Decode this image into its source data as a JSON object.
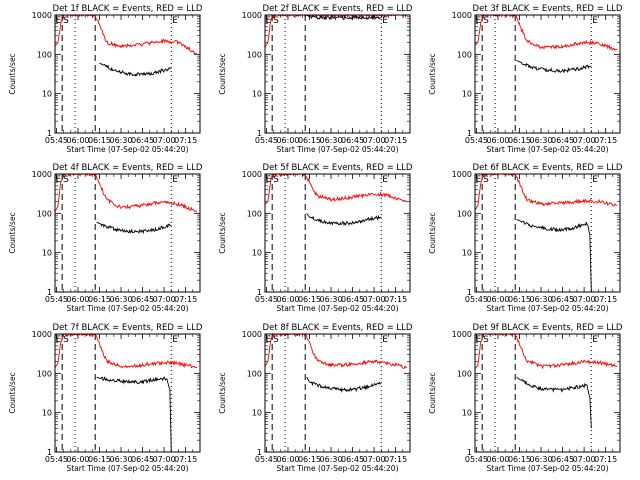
{
  "colors": {
    "events": "#000000",
    "lld": "#ff0000",
    "axes": "#000000",
    "background": "#ffffff"
  },
  "shared": {
    "title_suffix": "BLACK = Events, RED = LLD",
    "xlabel": "Start Time (07-Sep-02 05:44:20)",
    "ylabel": "Counts/sec",
    "x_ticks": [
      "05:45",
      "06:00",
      "06:15",
      "06:30",
      "06:45",
      "07:00",
      "07:15"
    ],
    "y_ticks": [
      "1",
      "10",
      "100",
      "1000"
    ],
    "markers": {
      "S": "S",
      "E": "E"
    }
  },
  "chart_data": [
    {
      "type": "line",
      "title": "Det 1f BLACK = Events, RED = LLD",
      "xlabel": "Start Time (07-Sep-02 05:44:20)",
      "ylabel": "Counts/sec",
      "yscale": "log",
      "ylim": [
        1,
        1000
      ],
      "xlim": [
        "05:44",
        "07:25"
      ],
      "grid": false,
      "markers": {
        "S": "05:49",
        "E": "07:05"
      },
      "dashed_lines": [
        "05:49",
        "06:12"
      ],
      "dotted_lines": [
        "05:58",
        "07:05"
      ],
      "series": [
        {
          "color": "#ff0000",
          "x": [
            "05:44",
            "05:46",
            "05:48",
            "05:50",
            "06:12",
            "06:20",
            "06:30",
            "06:45",
            "07:00",
            "07:10",
            "07:15",
            "07:23"
          ],
          "y": [
            160,
            200,
            600,
            1000,
            1000,
            200,
            160,
            180,
            220,
            200,
            160,
            100
          ]
        },
        {
          "color": "#000000",
          "x": [
            "06:15",
            "06:17",
            "06:25",
            "06:35",
            "06:45",
            "06:55",
            "07:05"
          ],
          "y": [
            60,
            55,
            40,
            32,
            30,
            35,
            45
          ]
        }
      ]
    },
    {
      "type": "line",
      "title": "Det 2f BLACK = Events, RED = LLD",
      "xlabel": "Start Time (07-Sep-02 05:44:20)",
      "ylabel": "Counts/sec",
      "yscale": "log",
      "ylim": [
        1,
        1000
      ],
      "xlim": [
        "05:44",
        "07:25"
      ],
      "grid": false,
      "markers": {
        "S": "05:49",
        "E": "07:05"
      },
      "dashed_lines": [
        "05:49",
        "06:12"
      ],
      "dotted_lines": [
        "05:58",
        "07:05"
      ],
      "series": [
        {
          "color": "#ff0000",
          "x": [
            "05:44",
            "05:46",
            "05:48",
            "05:50",
            "06:12",
            "06:20",
            "06:45",
            "07:00",
            "07:25"
          ],
          "y": [
            150,
            200,
            700,
            1000,
            1000,
            1000,
            1000,
            1000,
            1000
          ]
        },
        {
          "color": "#000000",
          "x": [
            "06:13",
            "06:15",
            "06:30",
            "06:45",
            "07:00",
            "07:05"
          ],
          "y": [
            1000,
            900,
            850,
            850,
            850,
            850
          ]
        }
      ]
    },
    {
      "type": "line",
      "title": "Det 3f BLACK = Events, RED = LLD",
      "xlabel": "Start Time (07-Sep-02 05:44:20)",
      "ylabel": "Counts/sec",
      "yscale": "log",
      "ylim": [
        1,
        1000
      ],
      "xlim": [
        "05:44",
        "07:25"
      ],
      "grid": false,
      "markers": {
        "S": "05:49",
        "E": "07:05"
      },
      "dashed_lines": [
        "05:49",
        "06:12"
      ],
      "dotted_lines": [
        "05:58",
        "07:05"
      ],
      "series": [
        {
          "color": "#ff0000",
          "x": [
            "05:44",
            "05:46",
            "05:48",
            "05:50",
            "06:12",
            "06:20",
            "06:30",
            "06:45",
            "07:00",
            "07:10",
            "07:23"
          ],
          "y": [
            170,
            200,
            600,
            1000,
            1000,
            220,
            150,
            160,
            200,
            190,
            130
          ]
        },
        {
          "color": "#000000",
          "x": [
            "06:13",
            "06:15",
            "06:25",
            "06:35",
            "06:45",
            "06:55",
            "07:05"
          ],
          "y": [
            70,
            65,
            45,
            40,
            38,
            42,
            50
          ]
        }
      ]
    },
    {
      "type": "line",
      "title": "Det 4f BLACK = Events, RED = LLD",
      "xlabel": "Start Time (07-Sep-02 05:44:20)",
      "ylabel": "Counts/sec",
      "yscale": "log",
      "ylim": [
        1,
        1000
      ],
      "xlim": [
        "05:44",
        "07:25"
      ],
      "grid": false,
      "markers": {
        "S": "05:49",
        "E": "07:05"
      },
      "dashed_lines": [
        "05:49",
        "06:12"
      ],
      "dotted_lines": [
        "05:58",
        "07:05"
      ],
      "series": [
        {
          "color": "#ff0000",
          "x": [
            "05:44",
            "05:46",
            "05:48",
            "05:50",
            "06:12",
            "06:20",
            "06:30",
            "06:45",
            "07:00",
            "07:10",
            "07:23"
          ],
          "y": [
            110,
            150,
            600,
            1000,
            1000,
            220,
            140,
            160,
            200,
            170,
            110
          ]
        },
        {
          "color": "#000000",
          "x": [
            "06:13",
            "06:15",
            "06:25",
            "06:35",
            "06:45",
            "06:55",
            "07:05"
          ],
          "y": [
            60,
            55,
            40,
            35,
            35,
            40,
            50
          ]
        }
      ]
    },
    {
      "type": "line",
      "title": "Det 5f BLACK = Events, RED = LLD",
      "xlabel": "Start Time (07-Sep-02 05:44:20)",
      "ylabel": "Counts/sec",
      "yscale": "log",
      "ylim": [
        1,
        1000
      ],
      "xlim": [
        "05:44",
        "07:25"
      ],
      "grid": false,
      "markers": {
        "S": "05:49",
        "E": "07:05"
      },
      "dashed_lines": [
        "05:49",
        "06:12"
      ],
      "dotted_lines": [
        "05:58",
        "07:05"
      ],
      "series": [
        {
          "color": "#ff0000",
          "x": [
            "05:44",
            "05:46",
            "05:48",
            "05:50",
            "06:12",
            "06:20",
            "06:30",
            "06:45",
            "07:00",
            "07:10",
            "07:23"
          ],
          "y": [
            170,
            200,
            700,
            1000,
            1000,
            280,
            220,
            260,
            320,
            280,
            200
          ]
        },
        {
          "color": "#000000",
          "x": [
            "06:13",
            "06:15",
            "06:25",
            "06:35",
            "06:45",
            "06:55",
            "07:05"
          ],
          "y": [
            100,
            80,
            60,
            55,
            58,
            70,
            80
          ]
        }
      ]
    },
    {
      "type": "line",
      "title": "Det 6f BLACK = Events, RED = LLD",
      "xlabel": "Start Time (07-Sep-02 05:44:20)",
      "ylabel": "Counts/sec",
      "yscale": "log",
      "ylim": [
        1,
        1000
      ],
      "xlim": [
        "05:44",
        "07:25"
      ],
      "grid": false,
      "markers": {
        "S": "05:49",
        "E": "07:05"
      },
      "dashed_lines": [
        "05:49",
        "06:12"
      ],
      "dotted_lines": [
        "05:58",
        "07:05"
      ],
      "series": [
        {
          "color": "#ff0000",
          "x": [
            "05:44",
            "05:46",
            "05:48",
            "05:50",
            "06:12",
            "06:20",
            "06:30",
            "06:45",
            "07:00",
            "07:10",
            "07:23"
          ],
          "y": [
            120,
            160,
            600,
            1000,
            1000,
            220,
            170,
            180,
            210,
            200,
            160
          ]
        },
        {
          "color": "#000000",
          "x": [
            "06:13",
            "06:15",
            "06:25",
            "06:35",
            "06:45",
            "06:55",
            "07:02",
            "07:04",
            "07:05"
          ],
          "y": [
            70,
            65,
            45,
            40,
            38,
            45,
            55,
            30,
            1
          ]
        }
      ]
    },
    {
      "type": "line",
      "title": "Det 7f BLACK = Events, RED = LLD",
      "xlabel": "Start Time (07-Sep-02 05:44:20)",
      "ylabel": "Counts/sec",
      "yscale": "log",
      "ylim": [
        1,
        1000
      ],
      "xlim": [
        "05:44",
        "07:25"
      ],
      "grid": false,
      "markers": {
        "S": "05:49",
        "E": "07:05"
      },
      "dashed_lines": [
        "05:49",
        "06:12"
      ],
      "dotted_lines": [
        "05:58",
        "07:05"
      ],
      "series": [
        {
          "color": "#ff0000",
          "x": [
            "05:44",
            "05:46",
            "05:48",
            "05:50",
            "06:12",
            "06:20",
            "06:30",
            "06:45",
            "07:00",
            "07:10",
            "07:23"
          ],
          "y": [
            140,
            180,
            600,
            1000,
            1000,
            200,
            150,
            160,
            190,
            180,
            140
          ]
        },
        {
          "color": "#000000",
          "x": [
            "06:13",
            "06:15",
            "06:25",
            "06:35",
            "06:45",
            "06:55",
            "07:02",
            "07:04",
            "07:05"
          ],
          "y": [
            80,
            75,
            65,
            60,
            60,
            70,
            75,
            40,
            1
          ]
        }
      ]
    },
    {
      "type": "line",
      "title": "Det 8f BLACK = Events, RED = LLD",
      "xlabel": "Start Time (07-Sep-02 05:44:20)",
      "ylabel": "Counts/sec",
      "yscale": "log",
      "ylim": [
        1,
        1000
      ],
      "xlim": [
        "05:44",
        "07:25"
      ],
      "grid": false,
      "markers": {
        "S": "05:49",
        "E": "07:05"
      },
      "dashed_lines": [
        "05:49",
        "06:12"
      ],
      "dotted_lines": [
        "05:58",
        "07:05"
      ],
      "series": [
        {
          "color": "#ff0000",
          "x": [
            "05:44",
            "05:46",
            "05:48",
            "05:50",
            "06:12",
            "06:20",
            "06:30",
            "06:45",
            "07:00",
            "07:10",
            "07:23"
          ],
          "y": [
            150,
            200,
            700,
            1000,
            1000,
            220,
            160,
            170,
            200,
            180,
            140
          ]
        },
        {
          "color": "#000000",
          "x": [
            "06:13",
            "06:15",
            "06:25",
            "06:35",
            "06:45",
            "06:55",
            "07:05"
          ],
          "y": [
            80,
            60,
            45,
            38,
            38,
            45,
            55
          ]
        }
      ]
    },
    {
      "type": "line",
      "title": "Det 9f BLACK = Events, RED = LLD",
      "xlabel": "Start Time (07-Sep-02 05:44:20)",
      "ylabel": "Counts/sec",
      "yscale": "log",
      "ylim": [
        1,
        1000
      ],
      "xlim": [
        "05:44",
        "07:25"
      ],
      "grid": false,
      "markers": {
        "S": "05:49",
        "E": "07:05"
      },
      "dashed_lines": [
        "05:49",
        "06:12"
      ],
      "dotted_lines": [
        "05:58",
        "07:05"
      ],
      "series": [
        {
          "color": "#ff0000",
          "x": [
            "05:44",
            "05:46",
            "05:48",
            "05:50",
            "06:12",
            "06:20",
            "06:30",
            "06:45",
            "07:00",
            "07:10",
            "07:23"
          ],
          "y": [
            130,
            160,
            600,
            1000,
            1000,
            210,
            150,
            160,
            200,
            190,
            150
          ]
        },
        {
          "color": "#000000",
          "x": [
            "06:13",
            "06:15",
            "06:25",
            "06:35",
            "06:45",
            "06:55",
            "07:02",
            "07:04",
            "07:05"
          ],
          "y": [
            80,
            70,
            45,
            38,
            38,
            45,
            50,
            25,
            4
          ]
        }
      ]
    }
  ]
}
